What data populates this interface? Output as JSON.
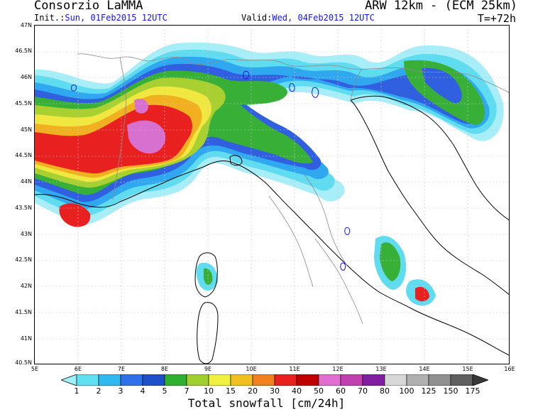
{
  "header": {
    "title": "Consorzio LaMMA",
    "model": "ARW 12km - (ECM 25km)",
    "init_label": "Init.:",
    "init_value": "Sun, 01Feb2015 12UTC",
    "valid_label": "Valid:",
    "valid_value": "Wed, 04Feb2015 12UTC",
    "lead_time": "T=+72h"
  },
  "axes": {
    "lat_labels": [
      "47N",
      "46.5N",
      "46N",
      "45.5N",
      "45N",
      "44.5N",
      "44N",
      "43.5N",
      "43N",
      "42.5N",
      "42N",
      "41.5N",
      "41N",
      "40.5N"
    ],
    "lon_labels": [
      "5E",
      "6E",
      "7E",
      "8E",
      "9E",
      "10E",
      "11E",
      "12E",
      "13E",
      "14E",
      "15E",
      "16E"
    ]
  },
  "legend": {
    "title": "Total snowfall [cm/24h]",
    "labels": [
      "1",
      "2",
      "3",
      "4",
      "5",
      "7",
      "10",
      "15",
      "20",
      "30",
      "40",
      "50",
      "60",
      "70",
      "80",
      "100",
      "125",
      "150",
      "175"
    ],
    "colors": [
      "#a0f0f8",
      "#60e0f0",
      "#30b8f0",
      "#3070e8",
      "#2050c8",
      "#30b030",
      "#a0d030",
      "#f0f040",
      "#f0c020",
      "#f08020",
      "#e82020",
      "#c00000",
      "#e070d0",
      "#c040b0",
      "#8020a0",
      "#d8d8d8",
      "#b0b0b0",
      "#909090",
      "#606060",
      "#383838"
    ]
  },
  "colors": {
    "border": "#8a8a8a",
    "coast": "#000000",
    "lakes": "#1515e6"
  }
}
